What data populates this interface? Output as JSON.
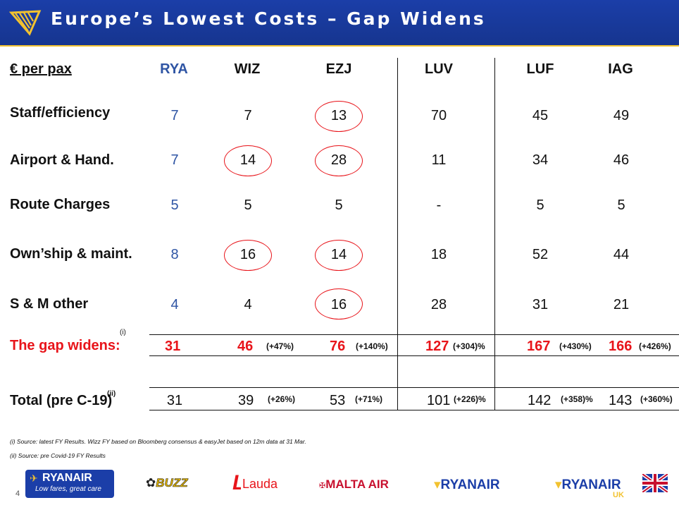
{
  "header": {
    "title": "Europe’s Lowest Costs – Gap Widens"
  },
  "table": {
    "corner_label": "€ per pax",
    "columns": [
      "RYA",
      "WIZ",
      "EZJ",
      "LUV",
      "LUF",
      "IAG"
    ],
    "rows": [
      {
        "label": "Staff/efficiency",
        "values": [
          "7",
          "7",
          "13",
          "70",
          "45",
          "49"
        ]
      },
      {
        "label": "Airport & Hand.",
        "values": [
          "7",
          "14",
          "28",
          "11",
          "34",
          "46"
        ]
      },
      {
        "label": "Route Charges",
        "values": [
          "5",
          "5",
          "5",
          "-",
          "5",
          "5"
        ]
      },
      {
        "label": "Own’ship & maint.",
        "values": [
          "8",
          "16",
          "14",
          "18",
          "52",
          "44"
        ]
      },
      {
        "label": "S & M other",
        "values": [
          "4",
          "4",
          "16",
          "28",
          "31",
          "21"
        ]
      }
    ],
    "gap_row": {
      "label": "The gap widens:",
      "footnote_marker": "(i)",
      "values": [
        "31",
        "46",
        "76",
        "127",
        "167",
        "166"
      ],
      "pcts": [
        "",
        "(+47%)",
        "(+140%)",
        "(+304)%",
        "(+430%)",
        "(+426%)"
      ]
    },
    "total_row": {
      "label": "Total (pre C-19)",
      "footnote_marker": "(ii)",
      "values": [
        "31",
        "39",
        "53",
        "101",
        "142",
        "143"
      ],
      "pcts": [
        "",
        "(+26%)",
        "(+71%)",
        "(+226)%",
        "(+358)%",
        "(+360%)"
      ]
    }
  },
  "footnotes": {
    "note1": "(i) Source: latest FY Results. Wizz FY based on Bloomberg consensus & easyJet based on 12m data at 31 Mar.",
    "note2": "(ii) Source: pre Covid-19 FY Results"
  },
  "logos": {
    "ryanair_main": "RYANAIR",
    "ryanair_tagline": "Low fares, great care",
    "buzz": "BUZZ",
    "lauda": "Lauda",
    "malta": "MALTA AIR",
    "ryanair2": "RYANAIR",
    "ryanair_uk": "RYANAIR",
    "uk": "UK"
  },
  "page_number": "4",
  "colors": {
    "header_bg": "#16358f",
    "accent_red": "#e8141a",
    "rya_blue": "#2f55a4",
    "gold": "#f2c230"
  }
}
